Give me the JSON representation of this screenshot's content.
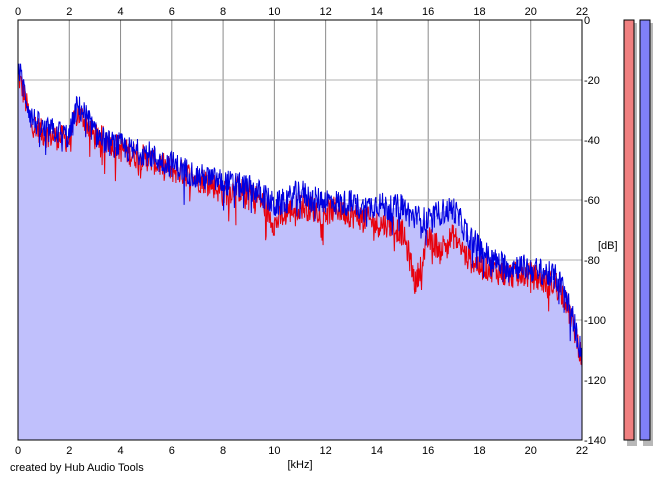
{
  "chart_data": {
    "type": "line",
    "xlabel": "[kHz]",
    "ylabel": "[dB]",
    "xlim": [
      0,
      22
    ],
    "ylim": [
      -140,
      0
    ],
    "x_ticks": [
      "0",
      "2",
      "4",
      "6",
      "8",
      "10",
      "12",
      "14",
      "16",
      "18",
      "20",
      "22"
    ],
    "y_ticks": [
      "0",
      "-20",
      "-40",
      "-60",
      "-80",
      "-100",
      "-120",
      "-140"
    ],
    "grid": true,
    "fill_color": "#c0c0fc",
    "series": [
      {
        "color": "#e8000c",
        "x": [
          0,
          0.2,
          0.5,
          1,
          1.5,
          2,
          2.3,
          2.6,
          3,
          3.5,
          4,
          4.5,
          5,
          5.5,
          6,
          6.5,
          7,
          7.5,
          8,
          8.5,
          9,
          9.5,
          10,
          10.5,
          11,
          11.5,
          12,
          12.5,
          13,
          13.5,
          14,
          14.5,
          15,
          15.3,
          15.5,
          16,
          16.5,
          17,
          17.5,
          18,
          18.5,
          19,
          19.5,
          20,
          20.5,
          21,
          21.3,
          21.6,
          21.8,
          22
        ],
        "y": [
          -18,
          -24,
          -34,
          -38,
          -39,
          -40,
          -31,
          -33,
          -39,
          -40,
          -43,
          -45,
          -46,
          -48,
          -50,
          -51,
          -53,
          -54,
          -58,
          -56,
          -58,
          -60,
          -68,
          -64,
          -62,
          -63,
          -64,
          -63,
          -65,
          -66,
          -68,
          -68,
          -71,
          -80,
          -88,
          -73,
          -76,
          -72,
          -79,
          -82,
          -83,
          -85,
          -85,
          -85,
          -87,
          -88,
          -92,
          -100,
          -106,
          -113
        ]
      },
      {
        "color": "#0000e0",
        "x": [
          0,
          0.2,
          0.5,
          1,
          1.5,
          2,
          2.3,
          2.6,
          3,
          3.5,
          4,
          4.5,
          5,
          5.5,
          6,
          6.5,
          7,
          7.5,
          8,
          8.5,
          9,
          9.5,
          10,
          10.5,
          11,
          11.5,
          12,
          12.5,
          13,
          13.5,
          14,
          14.5,
          15,
          15.3,
          15.5,
          16,
          16.5,
          17,
          17.5,
          18,
          18.5,
          19,
          19.5,
          20,
          20.5,
          21,
          21.3,
          21.6,
          21.8,
          22
        ],
        "y": [
          -15,
          -22,
          -32,
          -37,
          -37,
          -39,
          -29,
          -31,
          -38,
          -41,
          -42,
          -44,
          -44,
          -47,
          -48,
          -50,
          -52,
          -53,
          -54,
          -55,
          -56,
          -58,
          -62,
          -60,
          -57,
          -60,
          -60,
          -61,
          -61,
          -63,
          -61,
          -63,
          -62,
          -65,
          -66,
          -67,
          -64,
          -63,
          -71,
          -76,
          -80,
          -82,
          -82,
          -83,
          -84,
          -86,
          -90,
          -98,
          -105,
          -112
        ]
      }
    ],
    "level_meters": [
      {
        "color": "#f08080",
        "level": 0
      },
      {
        "color": "#8080f8",
        "level": 0
      }
    ]
  },
  "credit": "created by Hub Audio Tools"
}
